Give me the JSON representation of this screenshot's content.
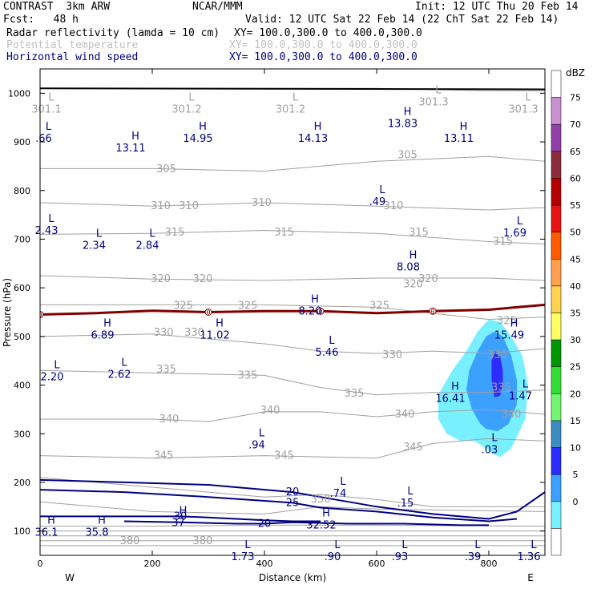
{
  "header": {
    "model": "CONTRAST  3km ARW",
    "center": "NCAR/MMM",
    "init": "Init: 12 UTC Thu 20 Feb 14",
    "fcst": "Fcst:   48 h",
    "valid": "Valid: 12 UTC Sat 22 Feb 14 (22 ChT Sat 22 Feb 14)",
    "field1": "Radar reflectivity (lamda = 10 cm)",
    "field1_xy": "XY= 100.0,300.0 to 400.0,300.0",
    "field2": "Potential temperature",
    "field2_xy": "XY= 100.0,300.0 to 400.0,300.0",
    "field3": "Horizontal wind speed",
    "field3_xy": "XY= 100.0,300.0 to 400.0,300.0"
  },
  "colors": {
    "wind": "#000080",
    "theta": "#a0a0a0",
    "freezing": "#800000",
    "ground": "#000000"
  },
  "chart_data": {
    "type": "cross-section",
    "xlabel": "Distance (km)",
    "ylabel": "Pressure (hPa)",
    "xlim": [
      0,
      900
    ],
    "ylim": [
      1050,
      50
    ],
    "x_ticks": [
      0,
      200,
      400,
      600,
      800
    ],
    "y_ticks": [
      100,
      200,
      300,
      400,
      500,
      600,
      700,
      800,
      900,
      1000
    ],
    "left_end": "W",
    "right_end": "E",
    "colorbar": {
      "unit": "dBZ",
      "labels": [
        "75",
        "70",
        "65",
        "60",
        "55",
        "50",
        "45",
        "40",
        "35",
        "30",
        "25",
        "20",
        "15",
        "10",
        "5",
        "0"
      ],
      "colors": [
        "#ffffff",
        "#c890d0",
        "#9040a8",
        "#8c2c3c",
        "#b40000",
        "#e61414",
        "#ff5a00",
        "#ffa050",
        "#ffd250",
        "#ffff64",
        "#009600",
        "#32dc32",
        "#73f573",
        "#3c8cc0",
        "#2c2cff",
        "#3ca0ff",
        "#78f0ff",
        "#ffffff"
      ]
    },
    "reflectivity": [
      {
        "dbz": 5,
        "x": [
          805,
          820,
          840,
          865,
          870,
          860,
          840,
          820,
          800,
          780,
          760,
          735,
          710,
          710,
          725,
          750,
          775,
          795,
          805
        ],
        "p": [
          260,
          252,
          270,
          330,
          400,
          460,
          500,
          530,
          535,
          510,
          470,
          430,
          380,
          330,
          300,
          285,
          285,
          270,
          260
        ]
      },
      {
        "dbz": 10,
        "x": [
          795,
          815,
          835,
          850,
          850,
          840,
          825,
          810,
          795,
          780,
          765,
          760,
          770,
          785,
          795
        ],
        "p": [
          310,
          305,
          320,
          360,
          410,
          460,
          500,
          510,
          500,
          470,
          430,
          390,
          350,
          320,
          310
        ]
      },
      {
        "dbz": 15,
        "x": [
          810,
          820,
          825,
          825,
          820,
          812,
          805,
          805,
          810
        ],
        "p": [
          375,
          378,
          400,
          430,
          460,
          470,
          450,
          410,
          375
        ]
      }
    ],
    "freezing_level": {
      "label": "0",
      "x": [
        0,
        100,
        200,
        300,
        400,
        500,
        600,
        700,
        800,
        850,
        900
      ],
      "p": [
        545,
        548,
        553,
        550,
        552,
        552,
        548,
        552,
        555,
        560,
        565
      ]
    },
    "theta_labels": [
      {
        "text": "380",
        "x": 160,
        "p": 80
      },
      {
        "text": "380",
        "x": 290,
        "p": 80
      },
      {
        "text": "350",
        "x": 500,
        "p": 165
      },
      {
        "text": "345",
        "x": 220,
        "p": 255
      },
      {
        "text": "345",
        "x": 435,
        "p": 255
      },
      {
        "text": "345",
        "x": 665,
        "p": 272
      },
      {
        "text": "340",
        "x": 230,
        "p": 330
      },
      {
        "text": "340",
        "x": 410,
        "p": 348
      },
      {
        "text": "340",
        "x": 650,
        "p": 340
      },
      {
        "text": "340",
        "x": 840,
        "p": 340
      },
      {
        "text": "335",
        "x": 560,
        "p": 383
      },
      {
        "text": "335",
        "x": 822,
        "p": 395
      },
      {
        "text": "335",
        "x": 225,
        "p": 432
      },
      {
        "text": "335",
        "x": 370,
        "p": 420
      },
      {
        "text": "330",
        "x": 628,
        "p": 462
      },
      {
        "text": "330",
        "x": 815,
        "p": 462
      },
      {
        "text": "330",
        "x": 220,
        "p": 508
      },
      {
        "text": "330",
        "x": 275,
        "p": 508
      },
      {
        "text": "325",
        "x": 255,
        "p": 563
      },
      {
        "text": "325",
        "x": 370,
        "p": 563
      },
      {
        "text": "325",
        "x": 605,
        "p": 563
      },
      {
        "text": "325",
        "x": 832,
        "p": 532
      },
      {
        "text": "320",
        "x": 215,
        "p": 618
      },
      {
        "text": "320",
        "x": 290,
        "p": 618
      },
      {
        "text": "320",
        "x": 692,
        "p": 618
      },
      {
        "text": "320",
        "x": 665,
        "p": 608
      },
      {
        "text": "315",
        "x": 240,
        "p": 714
      },
      {
        "text": "315",
        "x": 435,
        "p": 714
      },
      {
        "text": "315",
        "x": 675,
        "p": 714
      },
      {
        "text": "315",
        "x": 825,
        "p": 695
      },
      {
        "text": "310",
        "x": 215,
        "p": 768
      },
      {
        "text": "310",
        "x": 265,
        "p": 768
      },
      {
        "text": "310",
        "x": 395,
        "p": 775
      },
      {
        "text": "310",
        "x": 630,
        "p": 768
      },
      {
        "text": "305",
        "x": 225,
        "p": 844
      },
      {
        "text": "305",
        "x": 655,
        "p": 873
      }
    ],
    "theta_lines": [
      {
        "x": [
          0,
          200,
          400,
          600,
          900
        ],
        "p": [
          70,
          70,
          70,
          70,
          70
        ]
      },
      {
        "x": [
          0,
          200,
          400,
          600,
          900
        ],
        "p": [
          80,
          80,
          80,
          80,
          80
        ]
      },
      {
        "x": [
          0,
          200,
          400,
          600,
          900
        ],
        "p": [
          90,
          90,
          90,
          90,
          90
        ]
      },
      {
        "x": [
          0,
          200,
          400,
          600,
          900
        ],
        "p": [
          100,
          100,
          100,
          100,
          100
        ]
      },
      {
        "x": [
          0,
          200,
          400,
          600,
          900
        ],
        "p": [
          110,
          110,
          112,
          112,
          110
        ]
      },
      {
        "x": [
          0,
          200,
          400,
          500,
          600,
          900
        ],
        "p": [
          160,
          140,
          135,
          150,
          145,
          140
        ]
      },
      {
        "x": [
          0,
          200,
          400,
          500,
          600,
          700,
          900
        ],
        "p": [
          210,
          190,
          170,
          175,
          165,
          150,
          150
        ]
      },
      {
        "x": [
          0,
          200,
          400,
          600,
          700,
          800,
          900
        ],
        "p": [
          255,
          250,
          255,
          250,
          280,
          290,
          285
        ]
      },
      {
        "x": [
          0,
          200,
          300,
          400,
          500,
          600,
          700,
          800,
          900
        ],
        "p": [
          330,
          330,
          325,
          345,
          345,
          335,
          345,
          350,
          340
        ]
      },
      {
        "x": [
          0,
          200,
          400,
          500,
          600,
          700,
          800,
          900
        ],
        "p": [
          430,
          425,
          420,
          395,
          380,
          385,
          385,
          390
        ]
      },
      {
        "x": [
          0,
          200,
          400,
          500,
          600,
          700,
          800,
          900
        ],
        "p": [
          500,
          505,
          485,
          470,
          465,
          470,
          465,
          475
        ]
      },
      {
        "x": [
          0,
          200,
          400,
          600,
          800,
          900
        ],
        "p": [
          565,
          565,
          565,
          560,
          535,
          540
        ]
      },
      {
        "x": [
          0,
          200,
          400,
          600,
          800,
          900
        ],
        "p": [
          625,
          618,
          615,
          620,
          620,
          615
        ]
      },
      {
        "x": [
          0,
          200,
          400,
          600,
          800,
          900
        ],
        "p": [
          710,
          712,
          718,
          712,
          695,
          690
        ]
      },
      {
        "x": [
          0,
          200,
          400,
          600,
          800,
          900
        ],
        "p": [
          775,
          768,
          775,
          768,
          760,
          765
        ]
      },
      {
        "x": [
          0,
          200,
          400,
          600,
          800,
          900
        ],
        "p": [
          845,
          845,
          840,
          860,
          870,
          860
        ]
      },
      {
        "x": [
          0,
          200,
          400,
          600,
          800,
          900
        ],
        "p": [
          1010,
          1010,
          1010,
          1010,
          1005,
          1005
        ]
      }
    ],
    "wind_contours": [
      {
        "label": "20",
        "x": [
          0,
          150,
          300,
          450,
          500,
          600,
          700,
          800,
          850,
          900
        ],
        "p": [
          205,
          200,
          195,
          180,
          170,
          150,
          135,
          125,
          140,
          180
        ]
      },
      {
        "label": "25",
        "x": [
          0,
          150,
          300,
          450,
          500,
          600,
          700,
          800,
          850
        ],
        "p": [
          185,
          180,
          170,
          158,
          148,
          140,
          128,
          120,
          125
        ]
      },
      {
        "label": "30",
        "x": [
          0,
          150,
          250,
          300,
          350,
          400,
          450,
          500
        ],
        "p": [
          130,
          130,
          130,
          128,
          125,
          122,
          120,
          120
        ]
      },
      {
        "label": "20",
        "x": [
          150,
          250,
          350,
          400,
          450,
          550,
          650,
          750,
          800
        ],
        "p": [
          120,
          118,
          115,
          115,
          118,
          115,
          115,
          112,
          112
        ]
      }
    ],
    "wind_extremes": [
      {
        "kind": "H",
        "value": "36.1",
        "x": 20,
        "p": 115
      },
      {
        "kind": "H",
        "value": "35.8",
        "x": 110,
        "p": 115
      },
      {
        "kind": "H",
        "value": "37",
        "x": 255,
        "p": 135
      },
      {
        "kind": "H",
        "value": "32.52",
        "x": 510,
        "p": 130
      },
      {
        "kind": "L",
        "value": "1.73",
        "x": 370,
        "p": 65
      },
      {
        "kind": "L",
        "value": ".90",
        "x": 530,
        "p": 65
      },
      {
        "kind": "L",
        "value": ".93",
        "x": 650,
        "p": 65
      },
      {
        "kind": "L",
        "value": ".39",
        "x": 780,
        "p": 65
      },
      {
        "kind": "L",
        "value": "1.36",
        "x": 880,
        "p": 65
      },
      {
        "kind": "L",
        "value": ".74",
        "x": 540,
        "p": 195
      },
      {
        "kind": "L",
        "value": ".15",
        "x": 660,
        "p": 175
      },
      {
        "kind": "L",
        "value": ".94",
        "x": 395,
        "p": 295
      },
      {
        "kind": "L",
        "value": ".03",
        "x": 810,
        "p": 285
      },
      {
        "kind": "H",
        "value": "16.41",
        "x": 740,
        "p": 390
      },
      {
        "kind": "L",
        "value": "1.47",
        "x": 865,
        "p": 395
      },
      {
        "kind": "L",
        "value": "2.20",
        "x": 30,
        "p": 435
      },
      {
        "kind": "L",
        "value": "2.62",
        "x": 150,
        "p": 440
      },
      {
        "kind": "L",
        "value": "5.46",
        "x": 520,
        "p": 485
      },
      {
        "kind": "H",
        "value": "6.89",
        "x": 120,
        "p": 520
      },
      {
        "kind": "H",
        "value": "11.02",
        "x": 320,
        "p": 520
      },
      {
        "kind": "H",
        "value": "15.49",
        "x": 845,
        "p": 520
      },
      {
        "kind": "H",
        "value": "8.20",
        "x": 490,
        "p": 570
      },
      {
        "kind": "H",
        "value": "8.08",
        "x": 665,
        "p": 660
      },
      {
        "kind": "L",
        "value": "2.34",
        "x": 105,
        "p": 705
      },
      {
        "kind": "L",
        "value": "2.84",
        "x": 200,
        "p": 705
      },
      {
        "kind": "L",
        "value": "2.43",
        "x": 20,
        "p": 735
      },
      {
        "kind": "L",
        "value": "1.69",
        "x": 855,
        "p": 730
      },
      {
        "kind": "L",
        "value": ".49",
        "x": 610,
        "p": 795
      },
      {
        "kind": "H",
        "value": "13.11",
        "x": 170,
        "p": 905
      },
      {
        "kind": "L",
        "value": ".66",
        "x": 15,
        "p": 925
      },
      {
        "kind": "H",
        "value": "14.95",
        "x": 290,
        "p": 925
      },
      {
        "kind": "H",
        "value": "14.13",
        "x": 495,
        "p": 925
      },
      {
        "kind": "H",
        "value": "13.83",
        "x": 655,
        "p": 955
      },
      {
        "kind": "H",
        "value": "13.11",
        "x": 755,
        "p": 925
      }
    ],
    "theta_extremes": [
      {
        "kind": "L",
        "value": "301.1",
        "x": 20,
        "p": 985
      },
      {
        "kind": "L",
        "value": "301.2",
        "x": 270,
        "p": 985
      },
      {
        "kind": "L",
        "value": "301.2",
        "x": 455,
        "p": 985
      },
      {
        "kind": "L",
        "value": "301.3",
        "x": 710,
        "p": 1000
      },
      {
        "kind": "L",
        "value": "301.3",
        "x": 870,
        "p": 985
      }
    ]
  }
}
